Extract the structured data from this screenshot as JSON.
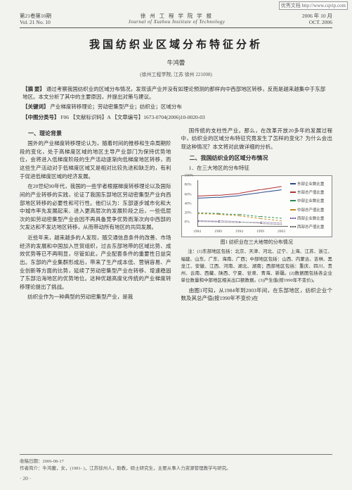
{
  "watermark": "优秀文档 http://www.cqvip.com",
  "header": {
    "vol_cn": "第21卷第10期",
    "vol_en": "Vol. 21 No. 10",
    "journal_cn": "徐 州 工 程 学 院 学 报",
    "journal_en": "Journal of Xuzhou Institute of Technology",
    "date_cn": "2006 年 10 月",
    "date_en": "OCT. 2006"
  },
  "title": "我国纺织业区域分布特征分析",
  "author": "牛鸿蕾",
  "affil": "(徐州工程学院, 江苏 徐州 221008)",
  "abstract": {
    "label": "【摘  要】",
    "text": "通过考察我国纺织业的区域分布情况，发现该产业并没有如理论预测的那样向中西部地区转移，反而是越来越集中于东部地区。本文分析了其中的主要原因，并提出对策与建议。"
  },
  "keywords": {
    "label": "【关键词】",
    "text": "产业梯度转移理论；劳动密集型产业；纺织业；区域分布"
  },
  "clc": {
    "label": "【中图分类号】",
    "text": "F06  【文献标识码】A  【文章编号】1673-0704(2006)10-0020-03"
  },
  "left": {
    "sec1_title": "一、理论背景",
    "p1": "国外的产业梯度转移理论认为，随着时间的推移和生命周期阶段的变化，处于高梯度区域的地区主导产业部门为保持优势地位，会将进入低梯度阶段的生产活动逐渐向低梯度地区转移，而这些生产活动对于低梯度区域又是相对比较先进和缺乏的，有利于促进低梯度区域的经济发展。",
    "p2": "在20世纪90年代，我国的一些学者根据梯度转移理论以及国际间的产业转移的实践，论证了我国东部地区劳动密集型产业向西部地区转移的必要性和可行性。他们认为：东部逐步城市化和大中城市率先发展起来、进入更高层次的发展阶段之后，一些低层次的如劳动密集型产业会因不再具备竞争优势而渐次向中西部的欠发达和不发达地区转移，从而带动所有地区的共同发展。",
    "p3": "近些年来，越来越多的人发现，随交通信息条件的改善、市场经济的发展和中国加入世贸组织，过去东部地带的区域比势、成效优势等已不再明显，尽管如此，产业配套条件的重要性日益突出。东部的产业集群形成后，带来了生产成本低、营销容易、产业创新等方面的比势，延续了劳动密集型产业在转移、增速稳固了东部沿海地区的优势地位。这种优越高度化传统的产业梯度转移理论提出了挑战。",
    "p4": "纺织业作为一种典型的劳动密集型产业，是我"
  },
  "right": {
    "p1": "国传统的支柱性产业。那么，在改革开放20多年的发展过程中，纺织业的区域分布特征究竟发生了怎样的变化？为什么会出现这种情况？本文将对此做详细的分析。",
    "sec2_title": "二、我国纺织业的区域分布情况",
    "sec2_sub": "1．在三大地区的分布特征",
    "caption": "图1 纺织业在三大地带的分布情况",
    "note": "注：(1)东部地区包括：北京、天津、河北、辽宁、上海、江苏、浙江、福建、山东、广东、海南、广西；中部地区包括：山西、内蒙古、吉林、黑龙江、安徽、江西、河南、湖北、湖南；西部地区包括：重庆、四川、贵州、云南、西藏、陕西、宁夏、甘肃、青海、新疆。(2)数据图包括各企业单位数量和中部地区相关出口额数据。(3)产生值(按1990年不变价)。",
    "p_after": "由图1可知，从1984年到2003年间，在东部地区，纺织企业个数及其总产值(按1990年不变价)在"
  },
  "footnotes": {
    "rec": "收稿日期：2006-08-17",
    "bio": "作者简介：牛鸿蕾，女，(1981- )，江苏徐州人，助教，硕士研究生，主要从事人力资源管理教学与研究。",
    "page": "· 20 ·"
  },
  "chart": {
    "type": "line",
    "xticks": [
      "1984",
      "1989",
      "1994",
      "1999",
      "2003"
    ],
    "yticks": [
      "0%",
      "20%",
      "40%",
      "60%",
      "80%",
      "100%"
    ],
    "ylim": [
      0,
      100
    ],
    "background_color": "#fdfdfc",
    "axis_color": "#666666",
    "series": [
      {
        "name": "东部企业数比重",
        "color": "#2a4a8a",
        "dash": "solid",
        "values": [
          60,
          62,
          66,
          72,
          78
        ]
      },
      {
        "name": "东部总产值比重",
        "color": "#b03030",
        "dash": "solid",
        "values": [
          64,
          66,
          70,
          78,
          85
        ]
      },
      {
        "name": "中部企业数比重",
        "color": "#2a8a4a",
        "dash": "dashed",
        "values": [
          28,
          27,
          25,
          20,
          16
        ]
      },
      {
        "name": "中部总产值比重",
        "color": "#c08a20",
        "dash": "dashed",
        "values": [
          26,
          25,
          22,
          16,
          11
        ]
      },
      {
        "name": "西部企业数比重",
        "color": "#6a4a9a",
        "dash": "dotted",
        "values": [
          12,
          11,
          9,
          8,
          6
        ]
      },
      {
        "name": "西部总产值比重",
        "color": "#555555",
        "dash": "dotted",
        "values": [
          10,
          9,
          8,
          6,
          4
        ]
      }
    ]
  }
}
